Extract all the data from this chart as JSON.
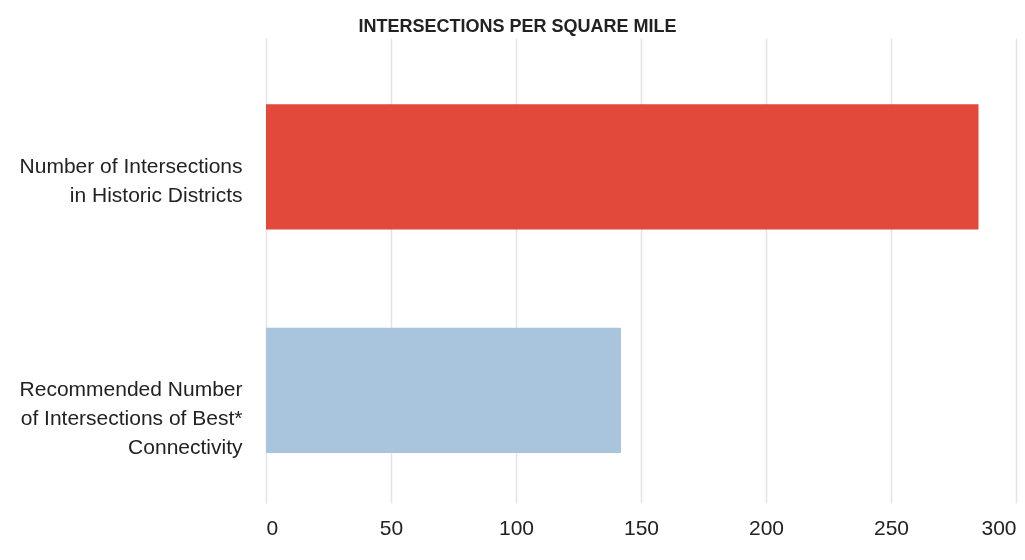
{
  "chart_data": {
    "type": "bar",
    "orientation": "horizontal",
    "title": "INTERSECTIONS PER SQUARE MILE",
    "categories": [
      "Number of Intersections\nin Historic Districts",
      "Recommended Number\nof Intersections of Best*\nConnectivity"
    ],
    "values": [
      285,
      142
    ],
    "colors": [
      "#e2493b",
      "#a8c5dd"
    ],
    "xlim": [
      0,
      300
    ],
    "xticks": [
      0,
      50,
      100,
      150,
      200,
      250,
      300
    ],
    "grid": "x"
  }
}
